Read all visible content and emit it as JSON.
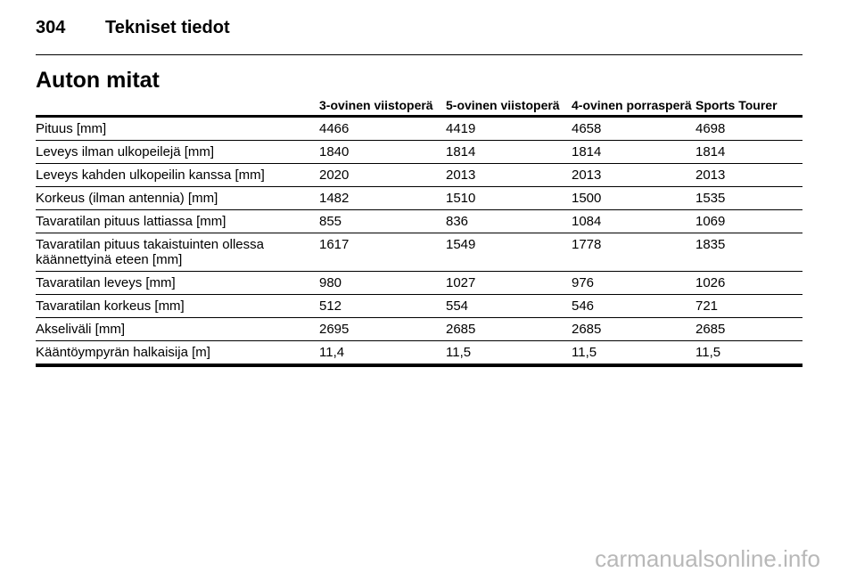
{
  "header": {
    "page_number": "304",
    "title": "Tekniset tiedot"
  },
  "section": {
    "title": "Auton mitat"
  },
  "table": {
    "columns": [
      "3-ovinen viistoperä",
      "5-ovinen viistoperä",
      "4-ovinen porrasperä",
      "Sports Tourer"
    ],
    "rows": [
      [
        "Pituus [mm]",
        "4466",
        "4419",
        "4658",
        "4698"
      ],
      [
        "Leveys ilman ulkopeilejä [mm]",
        "1840",
        "1814",
        "1814",
        "1814"
      ],
      [
        "Leveys kahden ulkopeilin kanssa [mm]",
        "2020",
        "2013",
        "2013",
        "2013"
      ],
      [
        "Korkeus (ilman antennia) [mm]",
        "1482",
        "1510",
        "1500",
        "1535"
      ],
      [
        "Tavaratilan pituus lattiassa [mm]",
        "855",
        "836",
        "1084",
        "1069"
      ],
      [
        "Tavaratilan pituus takaistuinten ollessa käännettyinä eteen [mm]",
        "1617",
        "1549",
        "1778",
        "1835"
      ],
      [
        "Tavaratilan leveys [mm]",
        "980",
        "1027",
        "976",
        "1026"
      ],
      [
        "Tavaratilan korkeus [mm]",
        "512",
        "554",
        "546",
        "721"
      ],
      [
        "Akseliväli [mm]",
        "2695",
        "2685",
        "2685",
        "2685"
      ],
      [
        "Kääntöympyrän halkaisija [m]",
        "11,4",
        "11,5",
        "11,5",
        "11,5"
      ]
    ]
  },
  "watermark": "carmanualsonline.info"
}
